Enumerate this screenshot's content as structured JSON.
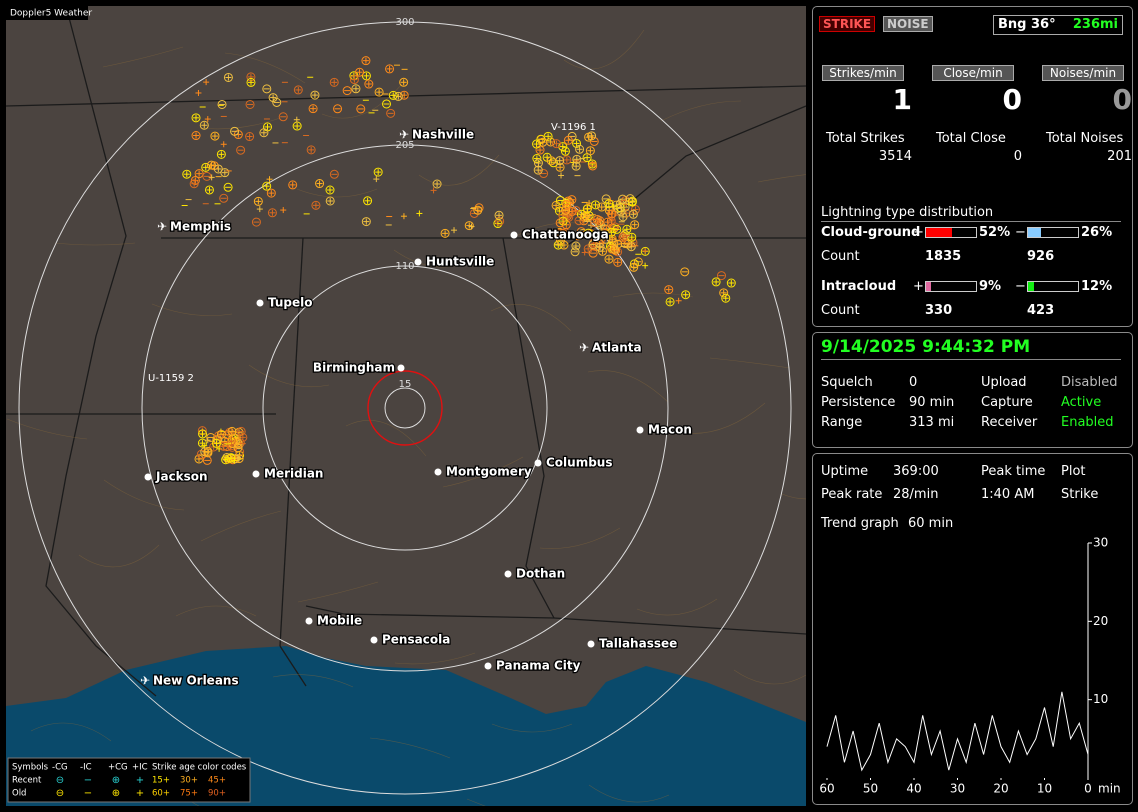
{
  "map": {
    "title": "Doppler5 Weather",
    "rings": [
      "300",
      "205",
      "110",
      "15"
    ],
    "cities": [
      "Nashville",
      "Memphis",
      "Chattanooga",
      "Huntsville",
      "Tupelo",
      "Birmingham",
      "Atlanta",
      "Macon",
      "Columbus",
      "Montgomery",
      "Meridian",
      "Jackson",
      "Dothan",
      "Mobile",
      "Pensacola",
      "Tallahassee",
      "Panama City",
      "New Orleans"
    ],
    "markers": [
      "V-1196 1",
      "U-1159 2"
    ],
    "legend": {
      "header": [
        "Symbols",
        "-CG",
        "-IC",
        "+CG",
        "+IC"
      ],
      "age_title": "Strike age color codes",
      "rows": [
        {
          "label": "Recent",
          "ages": [
            "15+",
            "30+",
            "45+"
          ]
        },
        {
          "label": "Old",
          "ages": [
            "60+",
            "75+",
            "90+"
          ]
        }
      ]
    }
  },
  "mode": {
    "strike": "STRIKE",
    "noise": "NOISE",
    "bearing": "Bng 36°",
    "distance": "236mi"
  },
  "rates": [
    {
      "label": "Strikes/min",
      "value": 1
    },
    {
      "label": "Close/min",
      "value": 0
    },
    {
      "label": "Noises/min",
      "value": 0
    }
  ],
  "totals": [
    {
      "label": "Total Strikes",
      "value": 3514
    },
    {
      "label": "Total Close",
      "value": 0
    },
    {
      "label": "Total Noises",
      "value": 201
    }
  ],
  "distribution": {
    "title": "Lightning type distribution",
    "count_label": "Count",
    "pos_sign": "+",
    "neg_sign": "−",
    "rows": [
      {
        "label": "Cloud-ground",
        "pos": {
          "value": 52,
          "label": "52%"
        },
        "neg": {
          "value": 26,
          "label": "26%"
        },
        "pos_count": 1835,
        "neg_count": 926
      },
      {
        "label": "Intracloud",
        "pos": {
          "value": 9,
          "label": "9%"
        },
        "neg": {
          "value": 12,
          "label": "12%"
        },
        "pos_count": 330,
        "neg_count": 423
      }
    ]
  },
  "datetime": "9/14/2025 9:44:32 PM",
  "settings": [
    [
      "Squelch",
      "0",
      "Upload",
      "Disabled"
    ],
    [
      "Persistence",
      "90 min",
      "Capture",
      "Active"
    ],
    [
      "Range",
      "313 mi",
      "Receiver",
      "Enabled"
    ]
  ],
  "stats": [
    [
      "Uptime",
      "369:00",
      "Peak time",
      "Plot"
    ],
    [
      "Peak rate",
      "28/min",
      "1:40 AM",
      "Strike"
    ]
  ],
  "trend": {
    "label": "Trend graph",
    "window": "60 min",
    "x_label": "min",
    "xlim": [
      60,
      0
    ],
    "xticks": [
      60,
      50,
      40,
      30,
      20,
      10,
      0
    ],
    "ylim": [
      0,
      30
    ],
    "yticks": [
      10,
      20,
      30
    ],
    "x": [
      60,
      58,
      56,
      54,
      52,
      50,
      48,
      46,
      44,
      42,
      40,
      38,
      36,
      34,
      32,
      30,
      28,
      26,
      24,
      22,
      20,
      18,
      16,
      14,
      12,
      10,
      8,
      6,
      4,
      2,
      0
    ],
    "values": [
      4,
      8,
      2,
      6,
      1,
      3,
      7,
      2,
      5,
      4,
      2,
      8,
      3,
      6,
      1,
      5,
      2,
      7,
      3,
      8,
      4,
      2,
      6,
      3,
      5,
      9,
      4,
      11,
      5,
      7,
      3
    ],
    "color": "#ffffff"
  }
}
